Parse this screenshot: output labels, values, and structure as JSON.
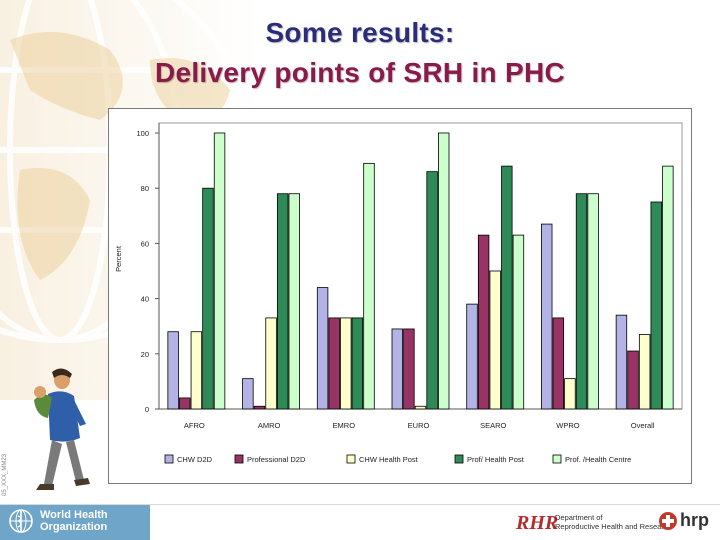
{
  "slide": {
    "title_line1": "Some results:",
    "title_line2": "Delivery points of  SRH in PHC",
    "title_colors": {
      "line1": "#2b2d7a",
      "line2": "#8b1a4a"
    },
    "side_code": "05_XXX_MM23",
    "who_logo": {
      "line1": "World Health",
      "line2": "Organization"
    },
    "rhr_logo": {
      "mark": "RHR",
      "line1": "Department of",
      "line2": "Reproductive Health and Research"
    },
    "hrp_logo": {
      "text": "hrp"
    }
  },
  "chart_data": {
    "type": "bar",
    "ylabel": "Percent",
    "ylim": [
      0,
      100
    ],
    "yticks": [
      0,
      20,
      40,
      60,
      80,
      100
    ],
    "ytick_labels": [
      "0",
      "20",
      "40",
      "60",
      "80",
      "100"
    ],
    "grid": false,
    "legend_position": "bottom",
    "categories": [
      "AFRO",
      "AMRO",
      "EMRO",
      "EURO",
      "SEARO",
      "WPRO",
      "Overall"
    ],
    "series": [
      {
        "name": "CHW D2D",
        "color": "#b3b3e6",
        "values": [
          28,
          11,
          44,
          29,
          38,
          67,
          34
        ]
      },
      {
        "name": "Professional D2D",
        "color": "#993366",
        "values": [
          4,
          1,
          33,
          29,
          63,
          33,
          21
        ]
      },
      {
        "name": "CHW Health Post",
        "color": "#ffffcc",
        "values": [
          28,
          33,
          33,
          1,
          50,
          11,
          27
        ]
      },
      {
        "name": "Prof/ Health Post",
        "color": "#2e8b57",
        "values": [
          80,
          78,
          33,
          86,
          88,
          78,
          75
        ]
      },
      {
        "name": "Prof. /Health Centre",
        "color": "#ccffcc",
        "values": [
          100,
          78,
          89,
          100,
          63,
          78,
          88
        ]
      }
    ]
  }
}
